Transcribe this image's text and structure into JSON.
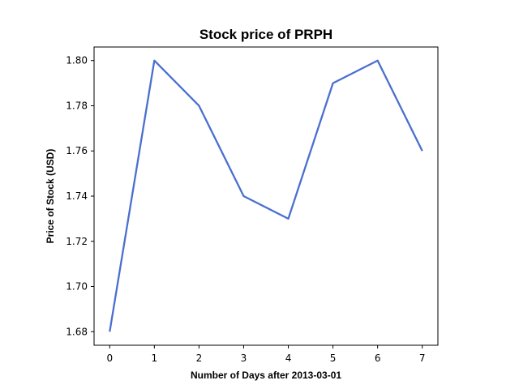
{
  "chart_data": {
    "type": "line",
    "title": "Stock price of PRPH",
    "xlabel": "Number of Days after 2013-03-01",
    "ylabel": "Price of Stock (USD)",
    "x": [
      0,
      1,
      2,
      3,
      4,
      5,
      6,
      7
    ],
    "series": [
      {
        "values": [
          1.68,
          1.8,
          1.78,
          1.74,
          1.73,
          1.79,
          1.8,
          1.76
        ],
        "color": "#4a6fcf"
      }
    ],
    "xticks": [
      "0",
      "1",
      "2",
      "3",
      "4",
      "5",
      "6",
      "7"
    ],
    "yticks": [
      "1.68",
      "1.70",
      "1.72",
      "1.74",
      "1.76",
      "1.78",
      "1.80"
    ],
    "xlim": [
      -0.35,
      7.35
    ],
    "ylim": [
      1.674,
      1.806
    ],
    "grid": false,
    "legend": "none"
  }
}
